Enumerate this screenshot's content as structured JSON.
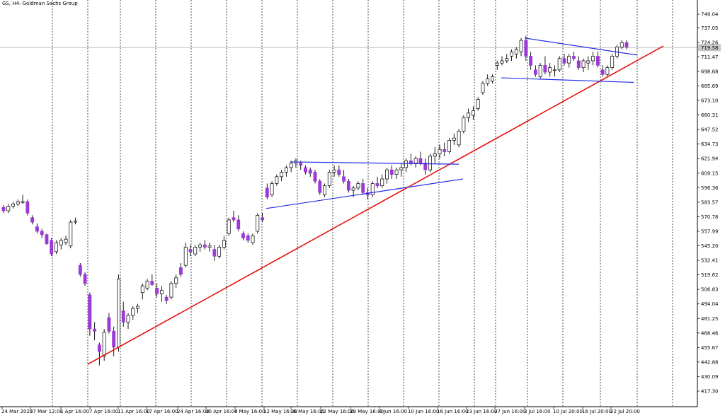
{
  "chart_data": {
    "type": "candlestick",
    "title": "GS, H4:  Goldman Sachs Group",
    "current_price": "719.58",
    "y_ticks": [
      "749.04",
      "737.05",
      "724.26",
      "711.47",
      "698.68",
      "685.89",
      "673.10",
      "660.31",
      "647.52",
      "634.73",
      "621.94",
      "609.15",
      "596.36",
      "583.57",
      "570.78",
      "557.99",
      "545.20",
      "532.41",
      "519.62",
      "506.83",
      "494.04",
      "481.25",
      "468.46",
      "455.67",
      "442.88",
      "430.09",
      "417.30"
    ],
    "ylim": [
      411.0,
      755.0
    ],
    "x_ticks": [
      "24 Mar 2025",
      "27 Mar 12:00",
      "1 Apr 16:00",
      "7 Apr 16:00",
      "11 Apr 16:00",
      "17 Apr 16:00",
      "24 Apr 16:00",
      "30 Apr 16:00",
      "6 May 16:00",
      "12 May 16:00",
      "16 May 16:00",
      "22 May 16:00",
      "29 May 16:00",
      "4 Jun 16:00",
      "10 Jun 16:00",
      "16 Jun 16:00",
      "23 Jun 16:00",
      "27 Jun 16:00",
      "3 Jul 16:00",
      "10 Jul 20:00",
      "16 Jul 20:00",
      "22 Jul 20:00"
    ],
    "grid": true,
    "bull_color": "#ffffff",
    "bear_color": "#9c3ad8",
    "candle_outline": "#000000",
    "candles": [
      [
        579,
        581,
        574,
        576
      ],
      [
        576,
        582,
        574,
        580
      ],
      [
        580,
        584,
        578,
        582
      ],
      [
        582,
        586,
        580,
        584
      ],
      [
        584,
        590,
        582,
        584
      ],
      [
        584,
        586,
        572,
        574
      ],
      [
        570,
        572,
        564,
        566
      ],
      [
        562,
        565,
        556,
        558
      ],
      [
        558,
        560,
        552,
        555
      ],
      [
        555,
        556,
        546,
        547
      ],
      [
        550,
        552,
        536,
        538
      ],
      [
        540,
        550,
        538,
        548
      ],
      [
        546,
        552,
        542,
        550
      ],
      [
        548,
        554,
        546,
        551
      ],
      [
        545,
        568,
        543,
        566
      ],
      [
        566,
        570,
        564,
        567
      ],
      [
        528,
        530,
        518,
        520
      ],
      [
        520,
        522,
        510,
        512
      ],
      [
        502,
        504,
        466,
        472
      ],
      [
        472,
        478,
        462,
        470
      ],
      [
        458,
        460,
        440,
        452
      ],
      [
        448,
        472,
        444,
        469
      ],
      [
        482,
        486,
        468,
        470
      ],
      [
        470,
        474,
        448,
        456
      ],
      [
        456,
        520,
        452,
        516
      ],
      [
        488,
        496,
        474,
        478
      ],
      [
        478,
        486,
        472,
        484
      ],
      [
        484,
        492,
        480,
        490
      ],
      [
        490,
        494,
        486,
        492
      ],
      [
        504,
        512,
        498,
        510
      ],
      [
        508,
        516,
        506,
        514
      ],
      [
        514,
        520,
        510,
        511
      ],
      [
        508,
        512,
        500,
        503
      ],
      [
        503,
        510,
        496,
        506
      ],
      [
        500,
        502,
        494,
        497
      ],
      [
        500,
        514,
        498,
        512
      ],
      [
        512,
        520,
        508,
        517
      ],
      [
        526,
        530,
        518,
        520
      ],
      [
        528,
        548,
        526,
        544
      ],
      [
        542,
        546,
        536,
        540
      ],
      [
        538,
        546,
        536,
        544
      ],
      [
        544,
        548,
        540,
        546
      ],
      [
        546,
        550,
        542,
        544
      ],
      [
        544,
        548,
        540,
        545
      ],
      [
        542,
        546,
        532,
        536
      ],
      [
        536,
        546,
        534,
        544
      ],
      [
        544,
        554,
        542,
        550
      ],
      [
        556,
        570,
        554,
        568
      ],
      [
        570,
        576,
        566,
        568
      ],
      [
        568,
        572,
        558,
        560
      ],
      [
        556,
        558,
        550,
        552
      ],
      [
        554,
        556,
        548,
        550
      ],
      [
        548,
        556,
        546,
        554
      ],
      [
        558,
        574,
        556,
        572
      ],
      [
        570,
        574,
        566,
        568
      ],
      [
        596,
        600,
        586,
        588
      ],
      [
        590,
        602,
        588,
        600
      ],
      [
        600,
        608,
        598,
        606
      ],
      [
        606,
        612,
        602,
        610
      ],
      [
        610,
        616,
        606,
        614
      ],
      [
        614,
        620,
        610,
        618
      ],
      [
        618,
        622,
        614,
        620
      ],
      [
        618,
        620,
        612,
        616
      ],
      [
        614,
        616,
        608,
        610
      ],
      [
        612,
        614,
        606,
        609
      ],
      [
        610,
        612,
        600,
        602
      ],
      [
        602,
        604,
        590,
        592
      ],
      [
        590,
        600,
        588,
        598
      ],
      [
        598,
        612,
        596,
        610
      ],
      [
        610,
        616,
        606,
        612
      ],
      [
        612,
        616,
        606,
        608
      ],
      [
        606,
        612,
        600,
        602
      ],
      [
        602,
        604,
        592,
        594
      ],
      [
        594,
        598,
        588,
        596
      ],
      [
        596,
        602,
        594,
        600
      ],
      [
        600,
        604,
        590,
        592
      ],
      [
        592,
        596,
        586,
        590
      ],
      [
        590,
        602,
        588,
        600
      ],
      [
        600,
        606,
        596,
        598
      ],
      [
        598,
        608,
        596,
        604
      ],
      [
        604,
        614,
        600,
        612
      ],
      [
        612,
        616,
        604,
        608
      ],
      [
        608,
        614,
        604,
        612
      ],
      [
        612,
        618,
        606,
        614
      ],
      [
        614,
        622,
        610,
        620
      ],
      [
        620,
        626,
        616,
        618
      ],
      [
        618,
        624,
        614,
        622
      ],
      [
        622,
        628,
        616,
        618
      ],
      [
        618,
        622,
        608,
        612
      ],
      [
        612,
        626,
        610,
        624
      ],
      [
        624,
        632,
        618,
        626
      ],
      [
        626,
        634,
        622,
        630
      ],
      [
        630,
        636,
        624,
        628
      ],
      [
        628,
        640,
        626,
        638
      ],
      [
        638,
        644,
        634,
        640
      ],
      [
        634,
        648,
        632,
        646
      ],
      [
        646,
        660,
        644,
        658
      ],
      [
        658,
        666,
        654,
        662
      ],
      [
        660,
        668,
        656,
        664
      ],
      [
        666,
        676,
        664,
        674
      ],
      [
        680,
        690,
        678,
        688
      ],
      [
        688,
        696,
        686,
        692
      ],
      [
        690,
        696,
        688,
        694
      ],
      [
        704,
        708,
        700,
        706
      ],
      [
        706,
        712,
        704,
        708
      ],
      [
        708,
        714,
        706,
        710
      ],
      [
        712,
        718,
        708,
        716
      ],
      [
        714,
        720,
        710,
        718
      ],
      [
        716,
        728,
        712,
        726
      ],
      [
        726,
        730,
        708,
        712
      ],
      [
        712,
        716,
        700,
        704
      ],
      [
        700,
        704,
        694,
        696
      ],
      [
        694,
        706,
        692,
        704
      ],
      [
        704,
        712,
        696,
        698
      ],
      [
        698,
        706,
        694,
        702
      ],
      [
        700,
        704,
        694,
        700
      ],
      [
        700,
        712,
        698,
        710
      ],
      [
        710,
        714,
        704,
        706
      ],
      [
        706,
        714,
        702,
        712
      ],
      [
        712,
        716,
        708,
        710
      ],
      [
        708,
        712,
        700,
        702
      ],
      [
        702,
        710,
        698,
        708
      ],
      [
        706,
        712,
        700,
        708
      ],
      [
        708,
        716,
        704,
        712
      ],
      [
        712,
        716,
        702,
        704
      ],
      [
        700,
        704,
        694,
        696
      ],
      [
        696,
        704,
        694,
        702
      ],
      [
        702,
        714,
        700,
        712
      ],
      [
        712,
        722,
        710,
        720
      ],
      [
        720,
        726,
        718,
        724
      ],
      [
        724,
        726,
        718,
        720
      ]
    ],
    "trendlines": [
      {
        "color": "#e8120b",
        "width": 1.6,
        "from": [
          124,
          441
        ],
        "to": [
          937,
          721
        ]
      },
      {
        "color": "#1f2ee6",
        "width": 1.2,
        "from": [
          376,
          578
        ],
        "to": [
          654,
          604
        ]
      },
      {
        "color": "#1f2ee6",
        "width": 1.2,
        "from": [
          410,
          619
        ],
        "to": [
          648,
          617
        ]
      },
      {
        "color": "#1f2ee6",
        "width": 1.2,
        "from": [
          741,
          728
        ],
        "to": [
          900,
          713
        ]
      },
      {
        "color": "#1f2ee6",
        "width": 1.2,
        "from": [
          708,
          693
        ],
        "to": [
          895,
          689
        ]
      }
    ]
  }
}
